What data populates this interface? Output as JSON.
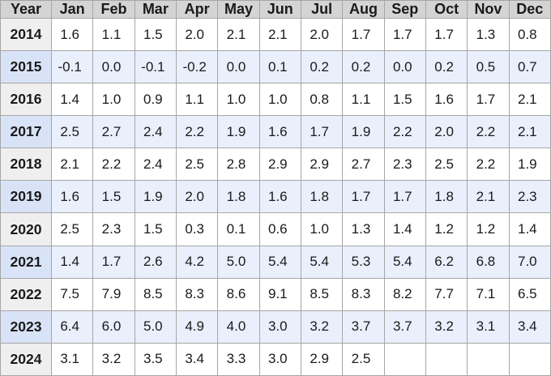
{
  "chart_data": {
    "type": "table",
    "columns": [
      "Year",
      "Jan",
      "Feb",
      "Mar",
      "Apr",
      "May",
      "Jun",
      "Jul",
      "Aug",
      "Sep",
      "Oct",
      "Nov",
      "Dec"
    ],
    "rows": [
      {
        "year": "2014",
        "values": [
          "1.6",
          "1.1",
          "1.5",
          "2.0",
          "2.1",
          "2.1",
          "2.0",
          "1.7",
          "1.7",
          "1.7",
          "1.3",
          "0.8"
        ]
      },
      {
        "year": "2015",
        "values": [
          "-0.1",
          "0.0",
          "-0.1",
          "-0.2",
          "0.0",
          "0.1",
          "0.2",
          "0.2",
          "0.0",
          "0.2",
          "0.5",
          "0.7"
        ]
      },
      {
        "year": "2016",
        "values": [
          "1.4",
          "1.0",
          "0.9",
          "1.1",
          "1.0",
          "1.0",
          "0.8",
          "1.1",
          "1.5",
          "1.6",
          "1.7",
          "2.1"
        ]
      },
      {
        "year": "2017",
        "values": [
          "2.5",
          "2.7",
          "2.4",
          "2.2",
          "1.9",
          "1.6",
          "1.7",
          "1.9",
          "2.2",
          "2.0",
          "2.2",
          "2.1"
        ]
      },
      {
        "year": "2018",
        "values": [
          "2.1",
          "2.2",
          "2.4",
          "2.5",
          "2.8",
          "2.9",
          "2.9",
          "2.7",
          "2.3",
          "2.5",
          "2.2",
          "1.9"
        ]
      },
      {
        "year": "2019",
        "values": [
          "1.6",
          "1.5",
          "1.9",
          "2.0",
          "1.8",
          "1.6",
          "1.8",
          "1.7",
          "1.7",
          "1.8",
          "2.1",
          "2.3"
        ]
      },
      {
        "year": "2020",
        "values": [
          "2.5",
          "2.3",
          "1.5",
          "0.3",
          "0.1",
          "0.6",
          "1.0",
          "1.3",
          "1.4",
          "1.2",
          "1.2",
          "1.4"
        ]
      },
      {
        "year": "2021",
        "values": [
          "1.4",
          "1.7",
          "2.6",
          "4.2",
          "5.0",
          "5.4",
          "5.4",
          "5.3",
          "5.4",
          "6.2",
          "6.8",
          "7.0"
        ]
      },
      {
        "year": "2022",
        "values": [
          "7.5",
          "7.9",
          "8.5",
          "8.3",
          "8.6",
          "9.1",
          "8.5",
          "8.3",
          "8.2",
          "7.7",
          "7.1",
          "6.5"
        ]
      },
      {
        "year": "2023",
        "values": [
          "6.4",
          "6.0",
          "5.0",
          "4.9",
          "4.0",
          "3.0",
          "3.2",
          "3.7",
          "3.7",
          "3.2",
          "3.1",
          "3.4"
        ]
      },
      {
        "year": "2024",
        "values": [
          "3.1",
          "3.2",
          "3.5",
          "3.4",
          "3.3",
          "3.0",
          "2.9",
          "2.5",
          "",
          "",
          "",
          ""
        ]
      }
    ]
  },
  "colors": {
    "header_bg": "#d4d4d4",
    "row_bg": "#ffffff",
    "row_alt_bg": "#e9effb",
    "year_bg": "#efefef",
    "year_alt_bg": "#d9e3f8",
    "border": "#a6a6a6",
    "text": "#1a1a1a"
  }
}
